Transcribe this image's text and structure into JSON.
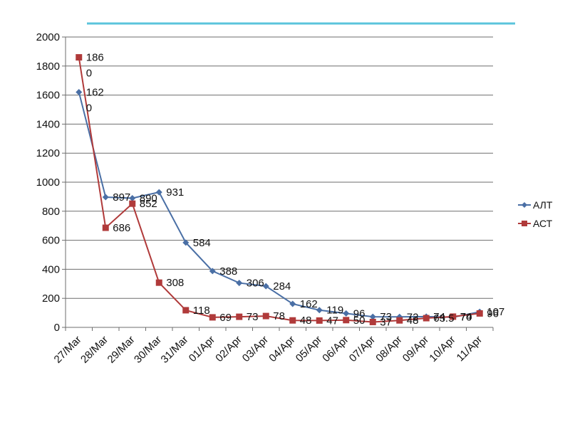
{
  "chart_data": {
    "type": "line",
    "title": "",
    "xlabel": "",
    "ylabel": "",
    "ylim": [
      0,
      2000
    ],
    "yticks": [
      0,
      200,
      400,
      600,
      800,
      1000,
      1200,
      1400,
      1600,
      1800,
      2000
    ],
    "categories": [
      "27/Mar",
      "28/Mar",
      "29/Mar",
      "30/Mar",
      "31/Mar",
      "01/Apr",
      "02/Apr",
      "03/Apr",
      "04/Apr",
      "05/Apr",
      "06/Apr",
      "07/Apr",
      "08/Apr",
      "09/Apr",
      "10/Apr",
      "11/Apr"
    ],
    "grid": "horizontal",
    "legend_position": "right",
    "series": [
      {
        "name": "АЛТ",
        "color": "#4a6fa5",
        "marker": "diamond",
        "values": [
          1620,
          897,
          890,
          931,
          584,
          388,
          306,
          284,
          162,
          119,
          96,
          73,
          72,
          74,
          70,
          107
        ],
        "labels": [
          "162\n0",
          "897",
          "890",
          "931",
          "584",
          "388",
          "306",
          "284",
          "162",
          "119",
          "96",
          "73",
          "72",
          "74",
          "70",
          "107"
        ]
      },
      {
        "name": "АСТ",
        "color": "#b03a3a",
        "marker": "square",
        "values": [
          1860,
          686,
          852,
          308,
          118,
          69,
          73,
          78,
          48,
          47,
          50,
          37,
          48,
          63.5,
          74,
          96
        ],
        "labels": [
          "186\n0",
          "686",
          "852",
          "308",
          "118",
          "69",
          "73",
          "78",
          "48",
          "47",
          "50",
          "37",
          "48",
          "63.5",
          "74",
          "96"
        ]
      }
    ]
  }
}
